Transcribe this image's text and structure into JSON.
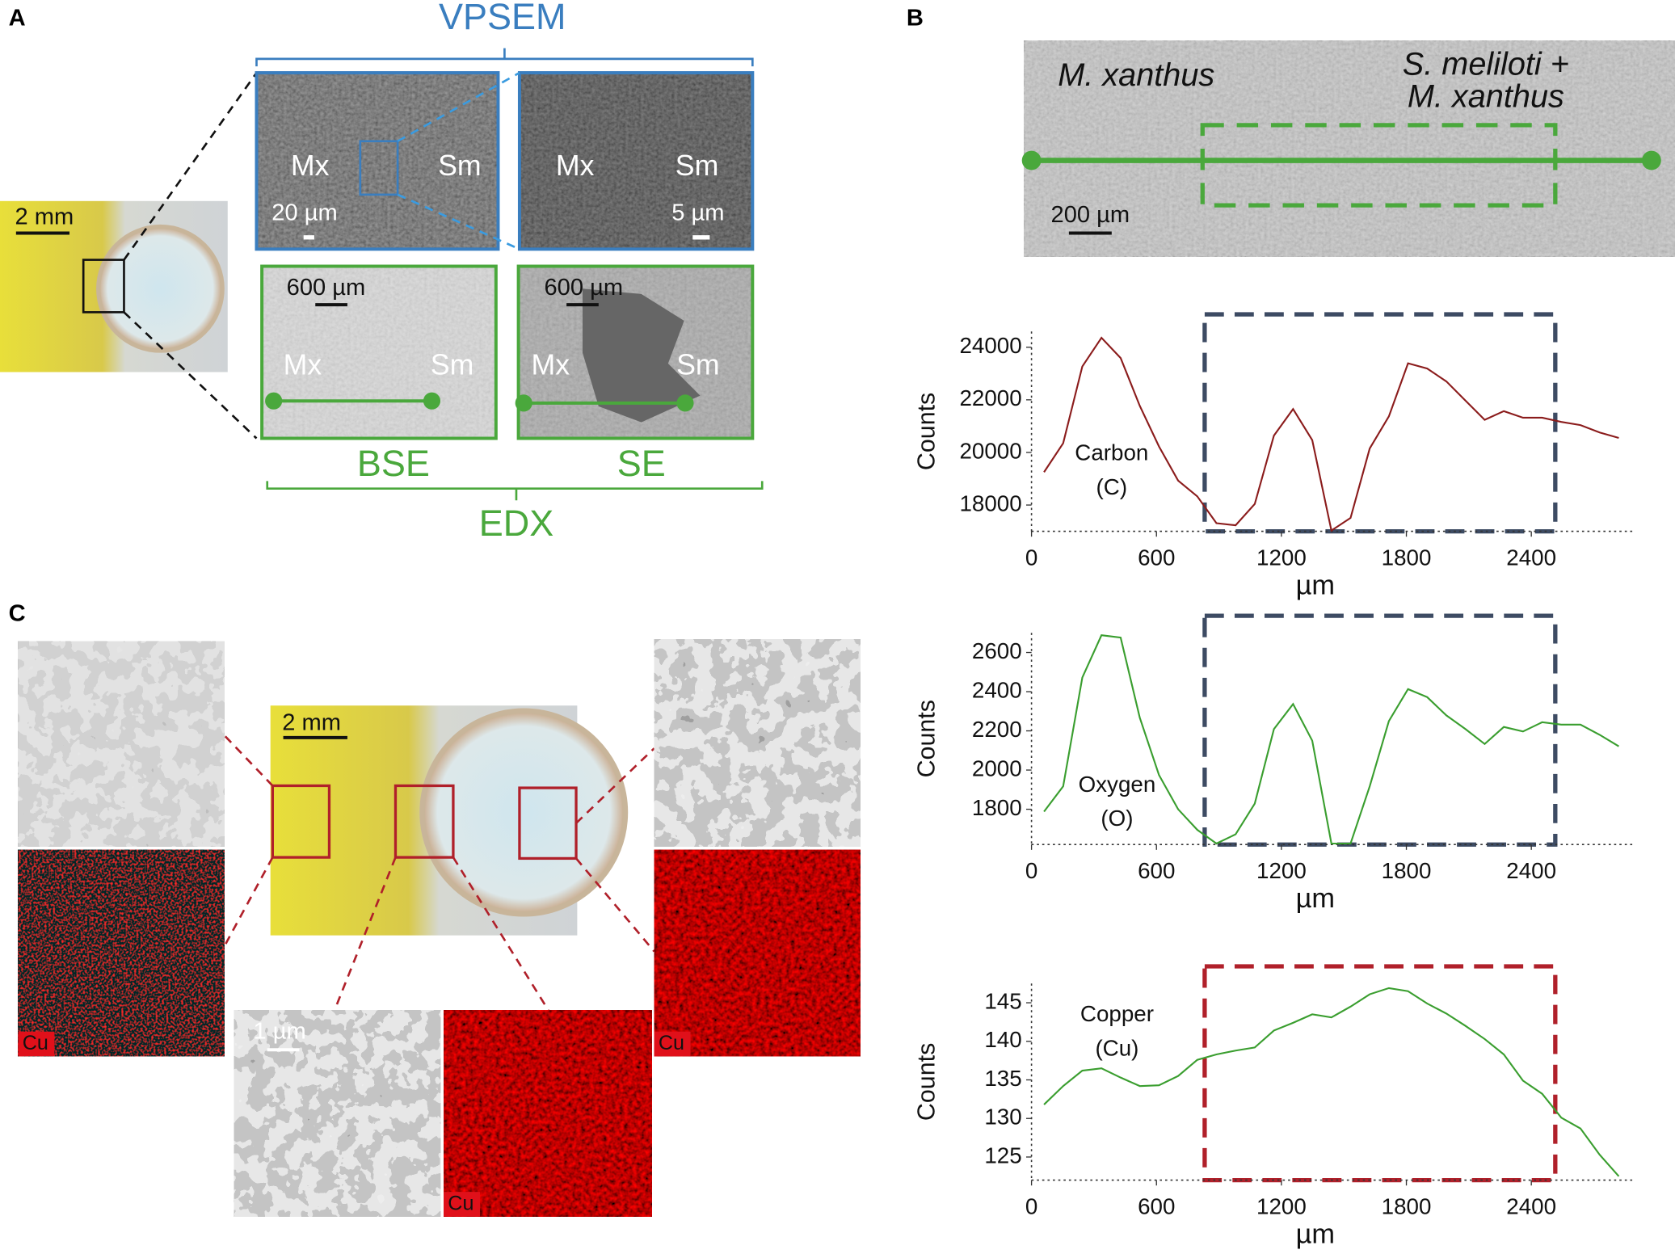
{
  "panels": {
    "A": {
      "label": "A",
      "vpsem": "VPSEM",
      "edx": "EDX",
      "bse": "BSE",
      "se": "SE",
      "plate_scale": "2 mm",
      "vpsem_images": [
        {
          "left": "Mx",
          "right": "Sm",
          "scale": "20 µm"
        },
        {
          "left": "Mx",
          "right": "Sm",
          "scale": "5 µm"
        }
      ],
      "edx_images": [
        {
          "left": "Mx",
          "right": "Sm",
          "scale": "600 µm"
        },
        {
          "left": "Mx",
          "right": "Sm",
          "scale": "600 µm"
        }
      ]
    },
    "B": {
      "label": "B",
      "left_strain": "M. xanthus",
      "right_strain_1": "S. meliloti +",
      "right_strain_2": "M. xanthus",
      "scale": "200 µm"
    },
    "C": {
      "label": "C",
      "plate_scale": "2 mm",
      "tem_scale": "1 µm",
      "cu_labels": [
        "Cu",
        "Cu",
        "Cu"
      ]
    }
  },
  "chart_data": [
    {
      "type": "line",
      "xlabel": "µm",
      "ylabel": "Counts",
      "annotation": [
        "Carbon",
        "(C)"
      ],
      "color": "#8b1c1c",
      "x": [
        60,
        152,
        244,
        336,
        428,
        520,
        612,
        704,
        796,
        888,
        980,
        1072,
        1164,
        1256,
        1348,
        1440,
        1532,
        1624,
        1716,
        1808,
        1900,
        1992,
        2084,
        2176,
        2268,
        2360,
        2452,
        2544,
        2636,
        2728,
        2820
      ],
      "values": [
        19250,
        20350,
        23270,
        24360,
        23590,
        21770,
        20230,
        18930,
        18330,
        17310,
        17230,
        18040,
        20640,
        21650,
        20470,
        17030,
        17510,
        20150,
        21370,
        23390,
        23190,
        22700,
        21970,
        21240,
        21570,
        21320,
        21320,
        21160,
        21040,
        20760,
        20550
      ],
      "xlim": [
        0,
        2900
      ],
      "xticks": [
        0,
        600,
        1200,
        1800,
        2400
      ],
      "ylim": [
        17000,
        24600
      ],
      "yticks": [
        18000,
        20000,
        22000,
        24000
      ]
    },
    {
      "type": "line",
      "xlabel": "µm",
      "ylabel": "Counts",
      "annotation": [
        "Oxygen",
        "(O)"
      ],
      "color": "#3a9e2f",
      "x": [
        60,
        152,
        244,
        336,
        428,
        520,
        612,
        704,
        796,
        888,
        980,
        1072,
        1164,
        1256,
        1348,
        1440,
        1532,
        1624,
        1716,
        1808,
        1900,
        1992,
        2084,
        2176,
        2268,
        2360,
        2452,
        2544,
        2636,
        2728,
        2820
      ],
      "values": [
        1788,
        1917,
        2472,
        2688,
        2676,
        2267,
        1975,
        1800,
        1695,
        1625,
        1672,
        1829,
        2209,
        2337,
        2150,
        1625,
        1625,
        1917,
        2250,
        2413,
        2372,
        2279,
        2209,
        2133,
        2220,
        2197,
        2244,
        2232,
        2232,
        2180,
        2121
      ],
      "xlim": [
        0,
        2900
      ],
      "xticks": [
        0,
        600,
        1200,
        1800,
        2400
      ],
      "ylim": [
        1620,
        2700
      ],
      "yticks": [
        1800,
        2000,
        2200,
        2400,
        2600
      ]
    },
    {
      "type": "line",
      "xlabel": "µm",
      "ylabel": "Counts",
      "annotation": [
        "Copper",
        "(Cu)"
      ],
      "color": "#3a9e2f",
      "x": [
        60,
        152,
        244,
        336,
        428,
        520,
        612,
        704,
        796,
        888,
        980,
        1072,
        1164,
        1256,
        1348,
        1440,
        1532,
        1624,
        1716,
        1808,
        1900,
        1992,
        2084,
        2176,
        2268,
        2360,
        2452,
        2544,
        2636,
        2728,
        2820
      ],
      "values": [
        131.8,
        134.2,
        136.2,
        136.5,
        135.3,
        134.2,
        134.3,
        135.5,
        137.6,
        138.3,
        138.8,
        139.2,
        141.4,
        142.4,
        143.5,
        143.1,
        144.5,
        146.1,
        146.9,
        146.5,
        144.9,
        143.6,
        142.0,
        140.3,
        138.3,
        134.9,
        133.2,
        130.1,
        128.7,
        125.3,
        122.5
      ],
      "xlim": [
        0,
        2900
      ],
      "xticks": [
        0,
        600,
        1200,
        1800,
        2400
      ],
      "ylim": [
        122,
        147.5
      ],
      "yticks": [
        125,
        130,
        135,
        140,
        145
      ]
    }
  ]
}
